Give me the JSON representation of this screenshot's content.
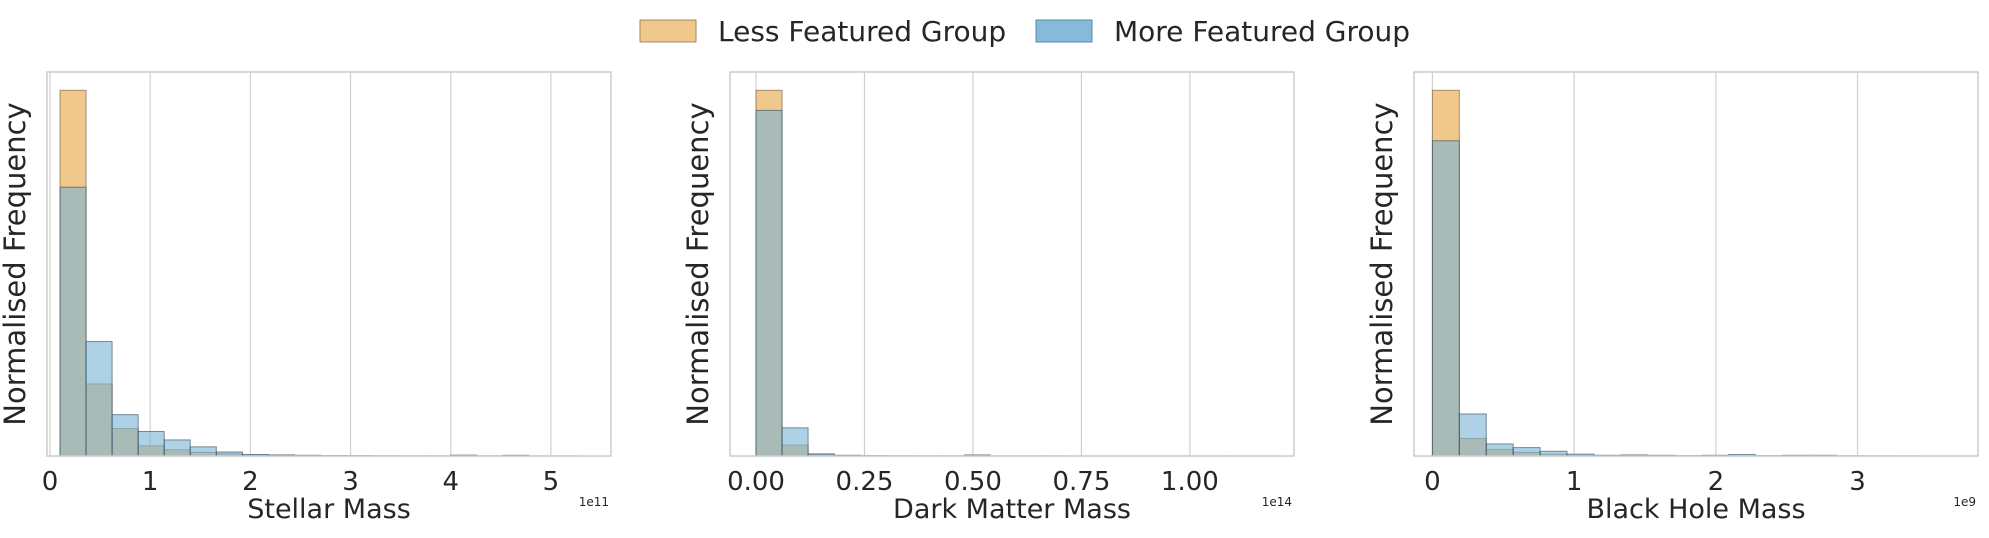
{
  "legend": {
    "position": "top-center",
    "entries": [
      {
        "label": "Less Featured Group",
        "color": "#f0c27e"
      },
      {
        "label": "More Featured Group",
        "color": "#7ab3d6"
      }
    ]
  },
  "chart_data": [
    {
      "type": "bar",
      "xlabel": "Stellar Mass",
      "ylabel": "Normalised Frequency",
      "x_offset_label": "1e11",
      "xlim": [
        -0.03,
        5.6
      ],
      "ylim": [
        0,
        1.05
      ],
      "grid": "vertical",
      "xticks": [
        0,
        1,
        2,
        3,
        4,
        5
      ],
      "xtick_labels": [
        "0",
        "1",
        "2",
        "3",
        "4",
        "5"
      ],
      "bin_edges": [
        0.1,
        0.36,
        0.62,
        0.88,
        1.14,
        1.4,
        1.66,
        1.92,
        2.18,
        2.44,
        2.7,
        2.96,
        3.22,
        3.48,
        3.74,
        4.0,
        4.26,
        4.52,
        4.78,
        5.04,
        5.3
      ],
      "series": [
        {
          "name": "Less Featured Group",
          "values": [
            1.0,
            0.197,
            0.075,
            0.028,
            0.017,
            0.01,
            0.006,
            0.003,
            0.002,
            0.001,
            0.001,
            0.0005,
            0.0003,
            0.0002,
            0.0002,
            0.0002,
            0.0003,
            0.0001,
            0.0001,
            0.0001
          ]
        },
        {
          "name": "More Featured Group",
          "values": [
            0.735,
            0.313,
            0.113,
            0.067,
            0.044,
            0.025,
            0.011,
            0.004,
            0.003,
            0.002,
            0.001,
            0.001,
            0.0005,
            0.0003,
            0.0003,
            0.0025,
            0.0003,
            0.002,
            0.0002,
            0.0002
          ]
        }
      ]
    },
    {
      "type": "bar",
      "xlabel": "Dark Matter Mass",
      "ylabel": "Normalised Frequency",
      "x_offset_label": "1e14",
      "xlim": [
        -0.06,
        1.24
      ],
      "ylim": [
        0,
        1.05
      ],
      "grid": "vertical",
      "xticks": [
        0,
        0.25,
        0.5,
        0.75,
        1.0
      ],
      "xtick_labels": [
        "0.00",
        "0.25",
        "0.50",
        "0.75",
        "1.00"
      ],
      "bin_edges": [
        0.0,
        0.06,
        0.12,
        0.18,
        0.24,
        0.3,
        0.36,
        0.42,
        0.48,
        0.54,
        0.6,
        0.66,
        0.72,
        0.78,
        0.84,
        0.9,
        0.96,
        1.02,
        1.08,
        1.14,
        1.2
      ],
      "series": [
        {
          "name": "Less Featured Group",
          "values": [
            1.0,
            0.03,
            0.004,
            0.001,
            0.0005,
            0.0003,
            0.0002,
            0.0002,
            0.0003,
            0.0001,
            0.0001,
            0.0001,
            0.0001,
            0.0001,
            0.0001,
            0.0001,
            0.0001,
            0.0001,
            0.0001,
            0.0001
          ]
        },
        {
          "name": "More Featured Group",
          "values": [
            0.945,
            0.077,
            0.006,
            0.002,
            0.001,
            0.0005,
            0.0003,
            0.0003,
            0.003,
            0.0002,
            0.0002,
            0.0002,
            0.0001,
            0.0001,
            0.0001,
            0.0001,
            0.0001,
            0.0001,
            0.0001,
            0.0001
          ]
        }
      ]
    },
    {
      "type": "bar",
      "xlabel": "Black Hole Mass",
      "ylabel": "Normalised Frequency",
      "x_offset_label": "1e9",
      "xlim": [
        -0.13,
        3.85
      ],
      "ylim": [
        0,
        1.05
      ],
      "grid": "vertical",
      "xticks": [
        0,
        1,
        2,
        3
      ],
      "xtick_labels": [
        "0",
        "1",
        "2",
        "3"
      ],
      "bin_edges": [
        0.0,
        0.19,
        0.38,
        0.57,
        0.76,
        0.95,
        1.14,
        1.33,
        1.52,
        1.71,
        1.9,
        2.09,
        2.28,
        2.47,
        2.66,
        2.85,
        3.04,
        3.23,
        3.42,
        3.61,
        3.8
      ],
      "series": [
        {
          "name": "Less Featured Group",
          "values": [
            1.0,
            0.048,
            0.018,
            0.01,
            0.005,
            0.002,
            0.001,
            0.001,
            0.0005,
            0.0003,
            0.0003,
            0.0002,
            0.0002,
            0.0001,
            0.0001,
            0.0001,
            0.0001,
            0.0001,
            0.0001,
            0.0001
          ]
        },
        {
          "name": "More Featured Group",
          "values": [
            0.862,
            0.115,
            0.033,
            0.023,
            0.013,
            0.005,
            0.002,
            0.003,
            0.002,
            0.001,
            0.002,
            0.004,
            0.001,
            0.002,
            0.002,
            0.0005,
            0.0003,
            0.0002,
            0.0001,
            0.0001
          ]
        }
      ]
    }
  ]
}
